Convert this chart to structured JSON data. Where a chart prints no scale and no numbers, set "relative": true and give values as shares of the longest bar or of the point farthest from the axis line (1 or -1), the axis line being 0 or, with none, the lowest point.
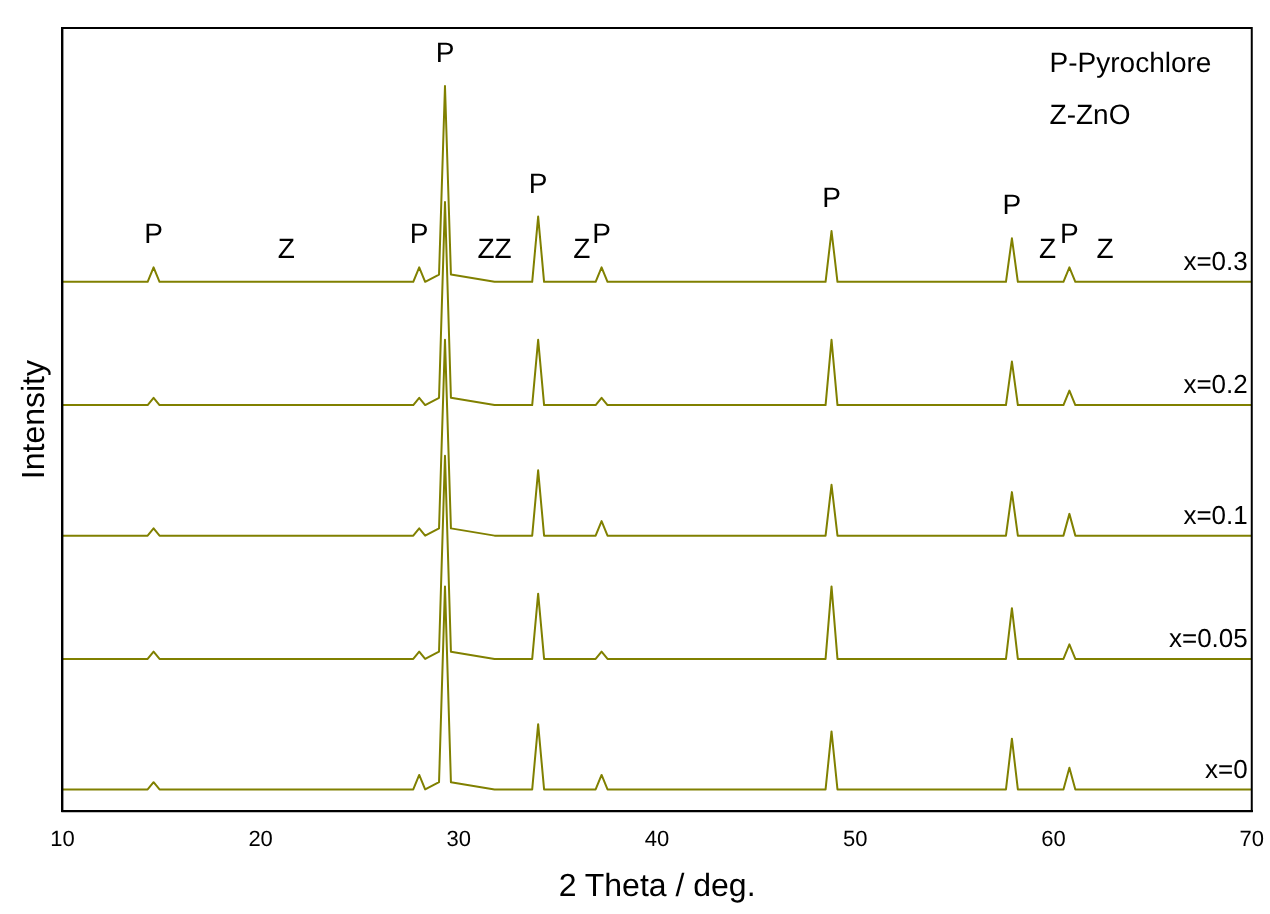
{
  "chart_data": {
    "type": "line",
    "relative": true,
    "xlabel": "2 Theta / deg.",
    "ylabel": "Intensity",
    "xlim": [
      10,
      70
    ],
    "xticks": [
      10,
      20,
      30,
      40,
      50,
      60,
      70
    ],
    "grid": false,
    "legend": false,
    "marker": "none",
    "line_style": "solid",
    "tick_labels": "x",
    "x": [
      10,
      14.3,
      14.6,
      14.9,
      21.3,
      27.7,
      28.0,
      28.3,
      29.0,
      29.3,
      29.6,
      31.8,
      33.7,
      34.0,
      34.3,
      36.2,
      36.9,
      37.2,
      37.5,
      48.5,
      48.8,
      49.1,
      57.6,
      57.9,
      58.2,
      59.7,
      60.5,
      60.8,
      61.1,
      62.6,
      70
    ],
    "series": [
      {
        "name": "x=0.3",
        "color": "#808000",
        "values": [
          0.73,
          0.73,
          0.75,
          0.73,
          0.73,
          0.73,
          0.75,
          0.73,
          0.74,
          1,
          0.74,
          0.73,
          0.73,
          0.82,
          0.73,
          0.73,
          0.73,
          0.75,
          0.73,
          0.73,
          0.8,
          0.73,
          0.73,
          0.79,
          0.73,
          0.73,
          0.73,
          0.75,
          0.73,
          0.73,
          0.73
        ]
      },
      {
        "name": "x=0.2",
        "color": "#808000",
        "values": [
          0.56,
          0.56,
          0.57,
          0.56,
          0.56,
          0.56,
          0.57,
          0.56,
          0.57,
          0.84,
          0.57,
          0.56,
          0.56,
          0.65,
          0.56,
          0.56,
          0.56,
          0.57,
          0.56,
          0.56,
          0.65,
          0.56,
          0.56,
          0.62,
          0.56,
          0.56,
          0.56,
          0.58,
          0.56,
          0.56,
          0.56
        ]
      },
      {
        "name": "x=0.1",
        "color": "#808000",
        "values": [
          0.38,
          0.38,
          0.39,
          0.38,
          0.38,
          0.38,
          0.39,
          0.38,
          0.39,
          0.65,
          0.39,
          0.38,
          0.38,
          0.47,
          0.38,
          0.38,
          0.38,
          0.4,
          0.38,
          0.38,
          0.45,
          0.38,
          0.38,
          0.44,
          0.38,
          0.38,
          0.38,
          0.41,
          0.38,
          0.38,
          0.38
        ]
      },
      {
        "name": "x=0.05",
        "color": "#808000",
        "values": [
          0.21,
          0.21,
          0.22,
          0.21,
          0.21,
          0.21,
          0.22,
          0.21,
          0.22,
          0.49,
          0.22,
          0.21,
          0.21,
          0.3,
          0.21,
          0.21,
          0.21,
          0.22,
          0.21,
          0.21,
          0.31,
          0.21,
          0.21,
          0.28,
          0.21,
          0.21,
          0.21,
          0.23,
          0.21,
          0.21,
          0.21
        ]
      },
      {
        "name": "x=0",
        "color": "#808000",
        "values": [
          0.03,
          0.03,
          0.04,
          0.03,
          0.03,
          0.03,
          0.05,
          0.03,
          0.04,
          0.31,
          0.04,
          0.03,
          0.03,
          0.12,
          0.03,
          0.03,
          0.03,
          0.05,
          0.03,
          0.03,
          0.11,
          0.03,
          0.03,
          0.1,
          0.03,
          0.03,
          0.03,
          0.06,
          0.03,
          0.03,
          0.03
        ]
      }
    ],
    "annotations": [
      {
        "text": "P",
        "x": 14.6,
        "y": 0.75
      },
      {
        "text": "Z",
        "x": 21.3,
        "y": 0.73
      },
      {
        "text": "P",
        "x": 28.0,
        "y": 0.75
      },
      {
        "text": "P",
        "x": 29.3,
        "y": 1
      },
      {
        "text": "ZZ",
        "x": 31.8,
        "y": 0.73
      },
      {
        "text": "P",
        "x": 34.0,
        "y": 0.82
      },
      {
        "text": "Z",
        "x": 36.2,
        "y": 0.73
      },
      {
        "text": "P",
        "x": 37.2,
        "y": 0.75
      },
      {
        "text": "P",
        "x": 48.8,
        "y": 0.8
      },
      {
        "text": "P",
        "x": 57.9,
        "y": 0.79
      },
      {
        "text": "Z",
        "x": 59.7,
        "y": 0.73
      },
      {
        "text": "P",
        "x": 60.8,
        "y": 0.75
      },
      {
        "text": "Z",
        "x": 62.6,
        "y": 0.73
      },
      "P-Pyrochlore",
      "Z-ZnO"
    ]
  }
}
